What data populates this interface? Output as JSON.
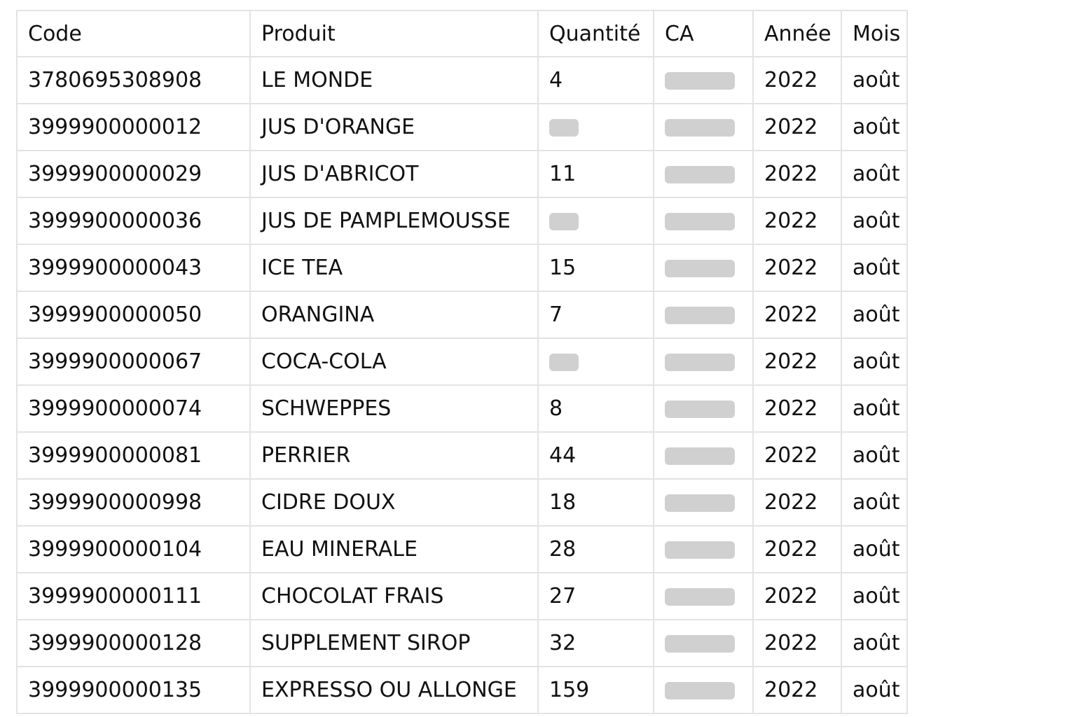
{
  "table": {
    "headers": [
      "Code",
      "Produit",
      "Quantité",
      "CA",
      "Année",
      "Mois"
    ],
    "rows": [
      {
        "code": "3780695308908",
        "produit": "LE MONDE",
        "quantite": "4",
        "quantite_masked": false,
        "ca_masked": true,
        "annee": "2022",
        "mois": "août"
      },
      {
        "code": "3999900000012",
        "produit": "JUS D'ORANGE",
        "quantite": "",
        "quantite_masked": true,
        "ca_masked": true,
        "annee": "2022",
        "mois": "août"
      },
      {
        "code": "3999900000029",
        "produit": "JUS D'ABRICOT",
        "quantite": "11",
        "quantite_masked": false,
        "ca_masked": true,
        "annee": "2022",
        "mois": "août"
      },
      {
        "code": "3999900000036",
        "produit": "JUS DE PAMPLEMOUSSE",
        "quantite": "",
        "quantite_masked": true,
        "ca_masked": true,
        "annee": "2022",
        "mois": "août"
      },
      {
        "code": "3999900000043",
        "produit": "ICE TEA",
        "quantite": "15",
        "quantite_masked": false,
        "ca_masked": true,
        "annee": "2022",
        "mois": "août"
      },
      {
        "code": "3999900000050",
        "produit": "ORANGINA",
        "quantite": "7",
        "quantite_masked": false,
        "ca_masked": true,
        "annee": "2022",
        "mois": "août"
      },
      {
        "code": "3999900000067",
        "produit": "COCA-COLA",
        "quantite": "",
        "quantite_masked": true,
        "ca_masked": true,
        "annee": "2022",
        "mois": "août"
      },
      {
        "code": "3999900000074",
        "produit": "SCHWEPPES",
        "quantite": "8",
        "quantite_masked": false,
        "ca_masked": true,
        "annee": "2022",
        "mois": "août"
      },
      {
        "code": "3999900000081",
        "produit": "PERRIER",
        "quantite": "44",
        "quantite_masked": false,
        "ca_masked": true,
        "annee": "2022",
        "mois": "août"
      },
      {
        "code": "3999900000998",
        "produit": "CIDRE DOUX",
        "quantite": "18",
        "quantite_masked": false,
        "ca_masked": true,
        "annee": "2022",
        "mois": "août"
      },
      {
        "code": "3999900000104",
        "produit": "EAU MINERALE",
        "quantite": "28",
        "quantite_masked": false,
        "ca_masked": true,
        "annee": "2022",
        "mois": "août"
      },
      {
        "code": "3999900000111",
        "produit": "CHOCOLAT FRAIS",
        "quantite": "27",
        "quantite_masked": false,
        "ca_masked": true,
        "annee": "2022",
        "mois": "août"
      },
      {
        "code": "3999900000128",
        "produit": "SUPPLEMENT SIROP",
        "quantite": "32",
        "quantite_masked": false,
        "ca_masked": true,
        "annee": "2022",
        "mois": "août"
      },
      {
        "code": "3999900000135",
        "produit": "EXPRESSO OU ALLONGE",
        "quantite": "159",
        "quantite_masked": false,
        "ca_masked": true,
        "annee": "2022",
        "mois": "août"
      }
    ]
  }
}
